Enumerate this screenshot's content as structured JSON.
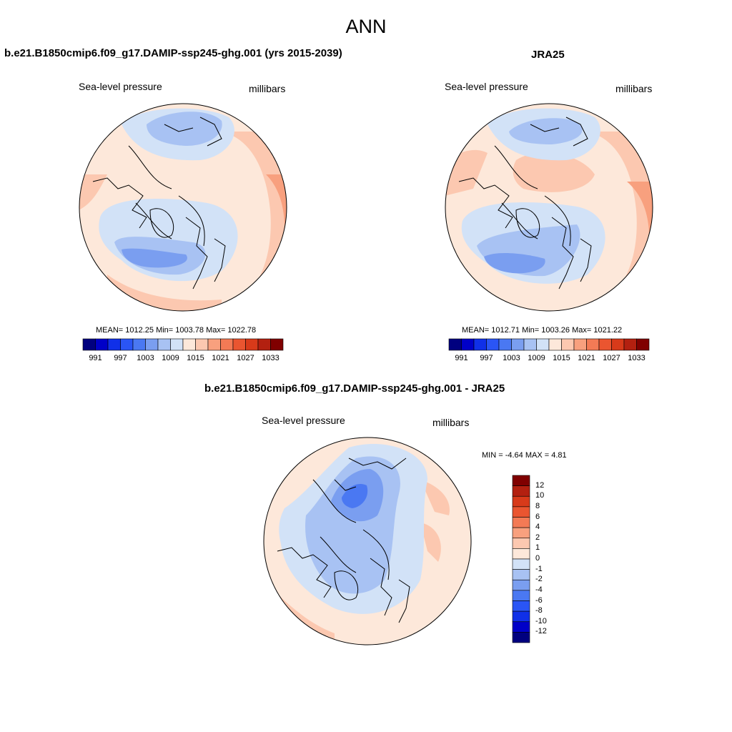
{
  "title": "ANN",
  "panels": [
    {
      "title": "b.e21.B1850cmip6.f09_g17.DAMIP-ssp245-ghg.001 (yrs 2015-2039)",
      "variable": "Sea-level pressure",
      "units": "millibars",
      "stats": "MEAN= 1012.25  Min= 1003.78  Max= 1022.78"
    },
    {
      "title": "JRA25",
      "variable": "Sea-level pressure",
      "units": "millibars",
      "stats": "MEAN= 1012.71  Min= 1003.26  Max= 1021.22"
    },
    {
      "title": "b.e21.B1850cmip6.f09_g17.DAMIP-ssp245-ghg.001 - JRA25",
      "variable": "Sea-level pressure",
      "units": "millibars",
      "stats": "MIN =  -4.64 MAX =   4.81"
    }
  ],
  "colorbar_abs": {
    "tick_labels": [
      "991",
      "997",
      "1003",
      "1009",
      "1015",
      "1021",
      "1027",
      "1033"
    ],
    "colors": [
      "#00007f",
      "#0000c8",
      "#1030e8",
      "#2a55f5",
      "#4a78f2",
      "#7a9ef0",
      "#a8c2f3",
      "#d2e2f7",
      "#fde8da",
      "#fcc8b0",
      "#f8a07e",
      "#f37a55",
      "#ea5530",
      "#d83a1a",
      "#b32010",
      "#800000"
    ]
  },
  "colorbar_diff": {
    "tick_labels": [
      "12",
      "10",
      "8",
      "6",
      "4",
      "2",
      "1",
      "0",
      "-1",
      "-2",
      "-4",
      "-6",
      "-8",
      "-10",
      "-12"
    ],
    "colors": [
      "#800000",
      "#b32010",
      "#d83a1a",
      "#ea5530",
      "#f37a55",
      "#f8a07e",
      "#fcc8b0",
      "#fde8da",
      "#d2e2f7",
      "#a8c2f3",
      "#7a9ef0",
      "#4a78f2",
      "#2a55f5",
      "#1030e8",
      "#0000c8",
      "#00007f"
    ]
  }
}
